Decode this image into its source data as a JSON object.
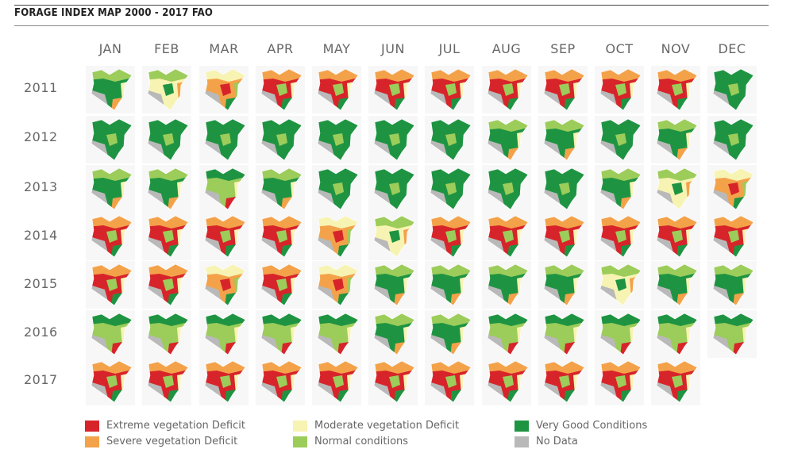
{
  "title": "FORAGE INDEX MAP 2000 - 2017 FAO",
  "months": [
    "JAN",
    "FEB",
    "MAR",
    "APR",
    "MAY",
    "JUN",
    "JUL",
    "AUG",
    "SEP",
    "OCT",
    "NOV",
    "DEC"
  ],
  "years": [
    "2011",
    "2012",
    "2013",
    "2014",
    "2015",
    "2016",
    "2017"
  ],
  "legend": [
    {
      "label": "Extreme vegetation Deficit",
      "color": "#d7242a",
      "key": "extreme"
    },
    {
      "label": "Moderate vegetation Deficit",
      "color": "#f7f3b3",
      "key": "moderate"
    },
    {
      "label": "Very Good Conditions",
      "color": "#1e9442",
      "key": "verygood"
    },
    {
      "label": "Severe vegetation Deficit",
      "color": "#f3a24a",
      "key": "severe"
    },
    {
      "label": "Normal conditions",
      "color": "#9ccc5a",
      "key": "normal"
    },
    {
      "label": "No Data",
      "color": "#b9b9b9",
      "key": "nodata"
    }
  ],
  "maps": [
    [
      "green-mixed",
      "moderate-mixed",
      "severe-mixed",
      "red-mixed",
      "red-mixed",
      "red-mixed",
      "red-mixed",
      "red-mixed",
      "red-mixed",
      "red-mixed",
      "red-mixed",
      "green"
    ],
    [
      "green",
      "green",
      "green",
      "green",
      "green",
      "green",
      "green",
      "green-mixed",
      "green-mixed",
      "green",
      "green-mixed",
      "green"
    ],
    [
      "green-mixed",
      "green-mixed",
      "normal-mixed",
      "green-mixed",
      "green",
      "green",
      "green",
      "green",
      "green",
      "green-mixed",
      "moderate-mixed",
      "severe-mixed"
    ],
    [
      "red-mixed",
      "red-mixed",
      "red-mixed",
      "red-mixed",
      "severe-mixed",
      "moderate-mixed",
      "red-mixed",
      "red-mixed",
      "red-mixed",
      "red-mixed",
      "red-mixed",
      "red-mixed"
    ],
    [
      "red-mixed",
      "red-mixed",
      "severe-mixed",
      "red-mixed",
      "severe-mixed",
      "green-mixed",
      "green-mixed",
      "green-mixed",
      "green-mixed",
      "moderate-mixed",
      "green-mixed",
      "green-mixed"
    ],
    [
      "normal-mixed",
      "normal-mixed",
      "normal-mixed",
      "normal-mixed",
      "normal-mixed",
      "green-mixed",
      "green-mixed",
      "normal-mixed",
      "normal-mixed",
      "normal-mixed",
      "normal-mixed",
      "normal-mixed"
    ],
    [
      "red-mixed",
      "red-mixed",
      "red-mixed",
      "red-mixed",
      "red-mixed",
      "red-mixed",
      "red-mixed",
      "red-mixed",
      "red-mixed",
      "red-mixed",
      "red-mixed",
      null
    ]
  ]
}
